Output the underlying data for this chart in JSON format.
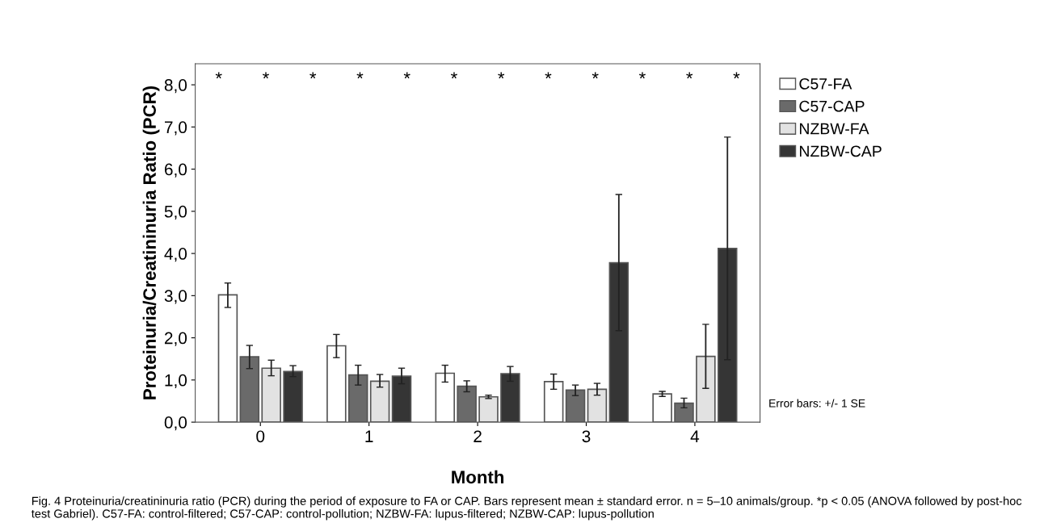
{
  "chart_data": {
    "type": "bar",
    "xlabel": "Month",
    "ylabel": "Proteinuria/Creatininuria Ratio (PCR)",
    "categories": [
      "0",
      "1",
      "2",
      "3",
      "4"
    ],
    "series": [
      {
        "name": "C57-FA",
        "color": "#ffffff",
        "values": [
          3.02,
          1.81,
          1.16,
          0.96,
          0.67
        ],
        "errors": [
          [
            2.72,
            3.3
          ],
          [
            1.53,
            2.08
          ],
          [
            0.95,
            1.35
          ],
          [
            0.78,
            1.14
          ],
          [
            0.61,
            0.73
          ]
        ]
      },
      {
        "name": "C57-CAP",
        "color": "#6a6a6a",
        "values": [
          1.55,
          1.12,
          0.85,
          0.76,
          0.45
        ],
        "errors": [
          [
            1.27,
            1.82
          ],
          [
            0.88,
            1.35
          ],
          [
            0.72,
            0.98
          ],
          [
            0.63,
            0.88
          ],
          [
            0.34,
            0.57
          ]
        ]
      },
      {
        "name": "NZBW-FA",
        "color": "#e2e2e2",
        "values": [
          1.28,
          0.97,
          0.6,
          0.78,
          1.56
        ],
        "errors": [
          [
            1.1,
            1.47
          ],
          [
            0.83,
            1.13
          ],
          [
            0.56,
            0.64
          ],
          [
            0.64,
            0.92
          ],
          [
            0.8,
            2.32
          ]
        ]
      },
      {
        "name": "NZBW-CAP",
        "color": "#353535",
        "values": [
          1.2,
          1.09,
          1.15,
          3.78,
          4.12
        ],
        "errors": [
          [
            1.08,
            1.34
          ],
          [
            0.91,
            1.28
          ],
          [
            0.97,
            1.32
          ],
          [
            2.17,
            5.4
          ],
          [
            1.48,
            6.76
          ]
        ]
      }
    ],
    "ylim": [
      0,
      8.5
    ],
    "yticks": [
      {
        "value": 0,
        "label": "0,0"
      },
      {
        "value": 1,
        "label": "1,0"
      },
      {
        "value": 2,
        "label": "2,0"
      },
      {
        "value": 3,
        "label": "3,0"
      },
      {
        "value": 4,
        "label": "4,0"
      },
      {
        "value": 5,
        "label": "5,0"
      },
      {
        "value": 6,
        "label": "6,0"
      },
      {
        "value": 7,
        "label": "7,0"
      },
      {
        "value": 8,
        "label": "8,0"
      }
    ],
    "grid": false,
    "legend": "top right",
    "annotations": [
      "*",
      "*",
      "*",
      "*",
      "*",
      "*",
      "*",
      "*",
      "*",
      "*",
      "*",
      "*",
      "Error bars: +/- 1 SE",
      "Fig. 4 Proteinuria/creatininuria ratio (PCR) during the period of exposure to FA or CAP. Bars represent mean ± standard error. n = 5–10 animals/group. *p < 0.05 (ANOVA followed by post-hoc test Gabriel). C57-FA: control-filtered; C57-CAP: control-pollution; NZBW-FA: lupus-filtered; NZBW-CAP: lupus-pollution"
    ]
  }
}
